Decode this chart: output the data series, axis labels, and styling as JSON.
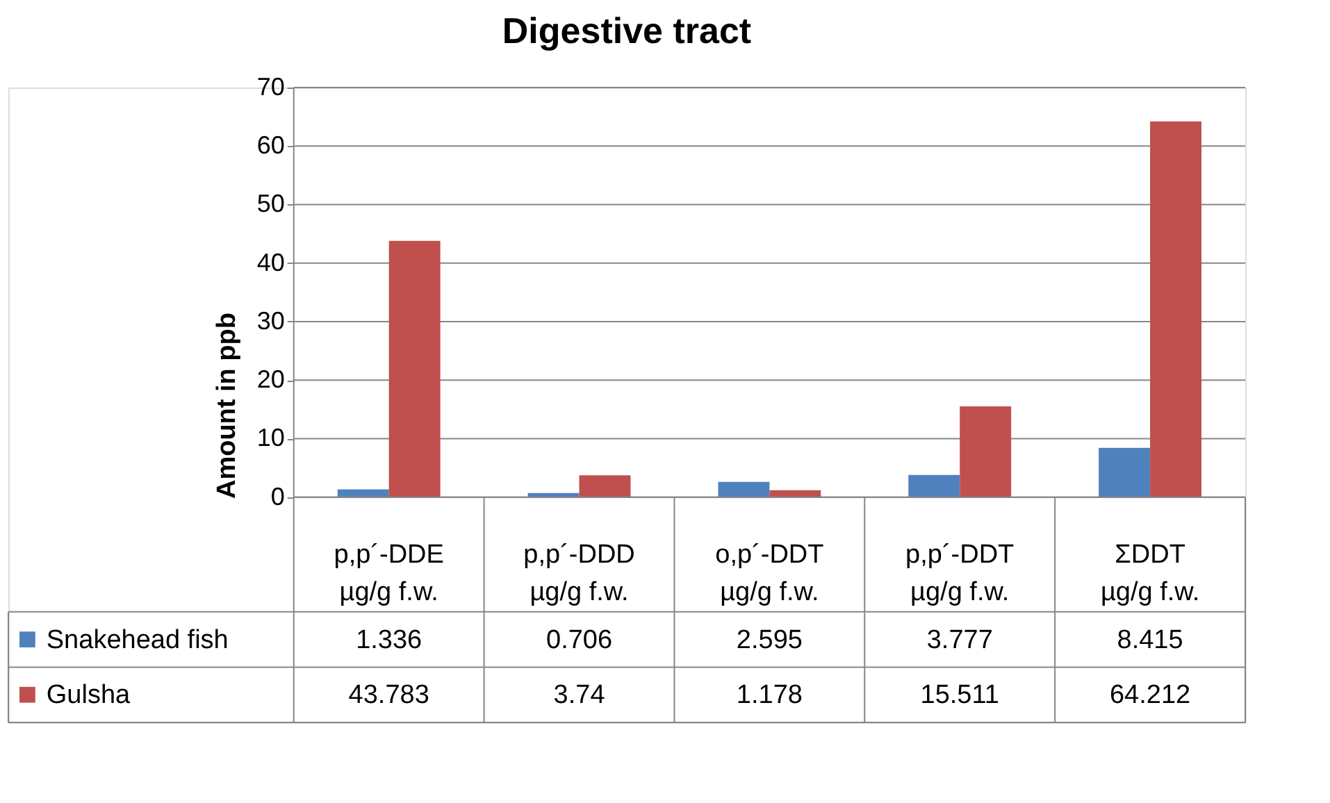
{
  "chart_data": {
    "type": "bar",
    "title": "Digestive tract",
    "ylabel": "Amount in ppb",
    "categories": [
      "p,p´-DDE\nµg/g f.w.",
      "p,p´-DDD\nµg/g f.w.",
      "o,p´-DDT\nµg/g f.w.",
      "p,p´-DDT\nµg/g f.w.",
      "ΣDDT\nµg/g f.w."
    ],
    "series": [
      {
        "name": "Snakehead fish",
        "color": "#4f81bd",
        "values": [
          1.336,
          0.706,
          2.595,
          3.777,
          8.415
        ]
      },
      {
        "name": "Gulsha",
        "color": "#c0504d",
        "values": [
          43.783,
          3.74,
          1.178,
          15.511,
          64.212
        ]
      }
    ],
    "ylim": [
      0,
      70
    ],
    "yticks": [
      0,
      10,
      20,
      30,
      40,
      50,
      60,
      70
    ],
    "grid": "y",
    "legend": "bottom left",
    "data_labels": true
  }
}
